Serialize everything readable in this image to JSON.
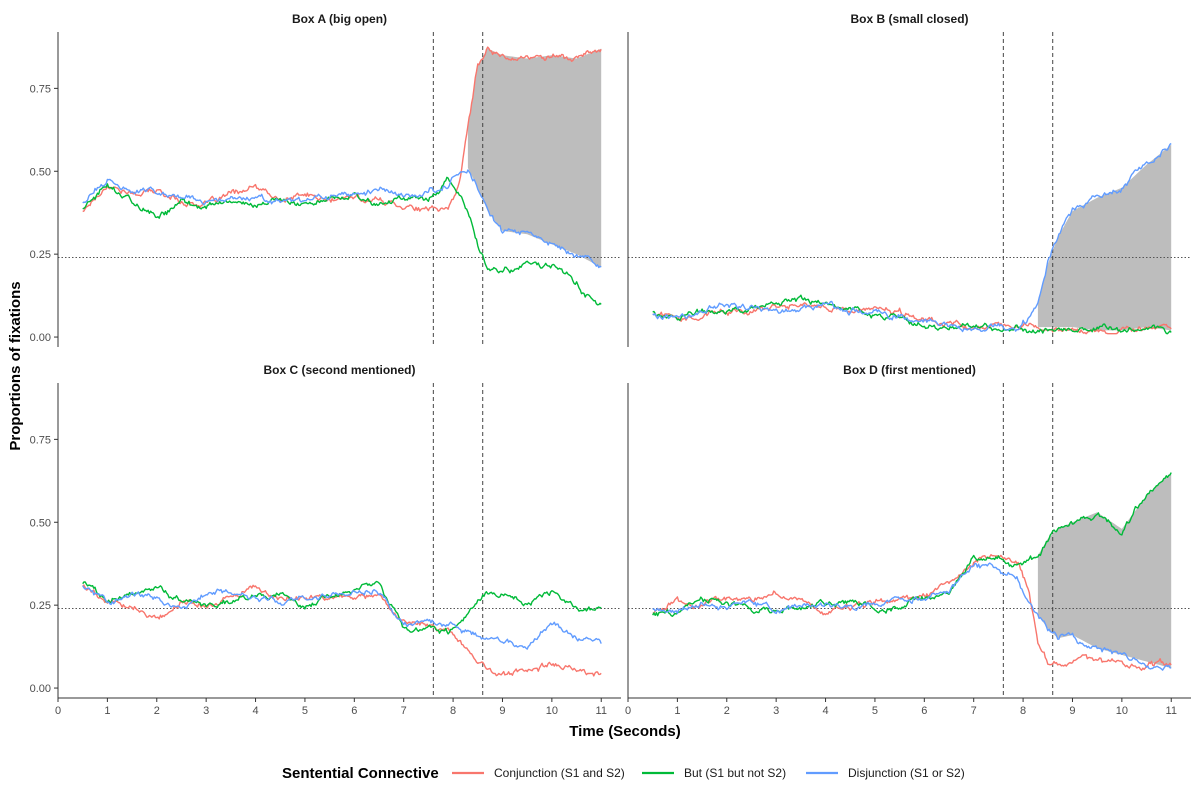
{
  "chart_data": {
    "type": "line",
    "xlabel": "Time (Seconds)",
    "ylabel": "Proportions of fixations",
    "xlim": [
      0,
      11.4
    ],
    "ylim": [
      -0.03,
      0.92
    ],
    "x_ticks": [
      "0",
      "1",
      "2",
      "3",
      "4",
      "5",
      "6",
      "7",
      "8",
      "9",
      "10",
      "11"
    ],
    "y_ticks": [
      "0.00",
      "0.25",
      "0.50",
      "0.75"
    ],
    "reference_line_y": 0.24,
    "vertical_markers_x": [
      7.6,
      8.6
    ],
    "grid": false,
    "legend": {
      "title": "Sentential Connective",
      "position": "bottom",
      "entries": [
        {
          "label": "Conjunction (S1 and S2)",
          "color": "#F8766D"
        },
        {
          "label": "But (S1 but not S2)",
          "color": "#00BA38"
        },
        {
          "label": "Disjunction (S1 or S2)",
          "color": "#619CFF"
        }
      ]
    },
    "shading": {
      "color": "#bdbdbd"
    },
    "panels": [
      {
        "title": "Box A (big open)",
        "shade": {
          "x_start": 8.3,
          "between": [
            "Conjunction (S1 and S2)",
            "Disjunction (S1 or S2)"
          ]
        },
        "x": [
          0.5,
          1,
          1.5,
          2,
          2.5,
          3,
          3.5,
          4,
          4.5,
          5,
          5.5,
          6,
          6.5,
          7,
          7.5,
          7.9,
          8.1,
          8.3,
          8.5,
          8.7,
          9,
          9.5,
          10,
          10.5,
          11
        ],
        "series": [
          {
            "name": "Conjunction (S1 and S2)",
            "values": [
              0.38,
              0.46,
              0.43,
              0.44,
              0.41,
              0.4,
              0.43,
              0.45,
              0.41,
              0.43,
              0.41,
              0.42,
              0.41,
              0.4,
              0.38,
              0.39,
              0.45,
              0.63,
              0.82,
              0.87,
              0.85,
              0.84,
              0.85,
              0.84,
              0.87
            ]
          },
          {
            "name": "But (S1 but not S2)",
            "values": [
              0.39,
              0.46,
              0.41,
              0.36,
              0.41,
              0.39,
              0.41,
              0.4,
              0.41,
              0.4,
              0.43,
              0.43,
              0.4,
              0.41,
              0.42,
              0.47,
              0.44,
              0.37,
              0.27,
              0.21,
              0.2,
              0.22,
              0.22,
              0.16,
              0.09
            ]
          },
          {
            "name": "Disjunction (S1 or S2)",
            "values": [
              0.41,
              0.47,
              0.44,
              0.44,
              0.43,
              0.4,
              0.42,
              0.42,
              0.4,
              0.41,
              0.42,
              0.43,
              0.45,
              0.42,
              0.44,
              0.46,
              0.5,
              0.51,
              0.45,
              0.38,
              0.32,
              0.31,
              0.28,
              0.25,
              0.21
            ]
          }
        ]
      },
      {
        "title": "Box B (small closed)",
        "shade": {
          "x_start": 8.3,
          "between": [
            "Conjunction (S1 and S2)",
            "Disjunction (S1 or S2)"
          ]
        },
        "x": [
          0.5,
          1,
          1.5,
          2,
          2.5,
          3,
          3.5,
          4,
          4.5,
          5,
          5.5,
          6,
          6.5,
          7,
          7.5,
          7.9,
          8.1,
          8.3,
          8.5,
          8.7,
          9,
          9.5,
          10,
          10.5,
          11
        ],
        "series": [
          {
            "name": "Conjunction (S1 and S2)",
            "values": [
              0.07,
              0.06,
              0.07,
              0.08,
              0.08,
              0.09,
              0.1,
              0.09,
              0.08,
              0.08,
              0.07,
              0.05,
              0.04,
              0.03,
              0.03,
              0.04,
              0.04,
              0.03,
              0.03,
              0.03,
              0.03,
              0.02,
              0.02,
              0.03,
              0.02
            ]
          },
          {
            "name": "But (S1 but not S2)",
            "values": [
              0.08,
              0.05,
              0.08,
              0.08,
              0.09,
              0.1,
              0.11,
              0.1,
              0.09,
              0.07,
              0.06,
              0.04,
              0.03,
              0.03,
              0.02,
              0.03,
              0.02,
              0.02,
              0.02,
              0.02,
              0.02,
              0.03,
              0.02,
              0.03,
              0.02
            ]
          },
          {
            "name": "Disjunction (S1 or S2)",
            "values": [
              0.07,
              0.06,
              0.08,
              0.1,
              0.09,
              0.08,
              0.09,
              0.1,
              0.08,
              0.07,
              0.06,
              0.05,
              0.03,
              0.02,
              0.03,
              0.02,
              0.05,
              0.1,
              0.22,
              0.3,
              0.38,
              0.42,
              0.45,
              0.52,
              0.58
            ]
          }
        ]
      },
      {
        "title": "Box C (second mentioned)",
        "x": [
          0.5,
          1,
          1.5,
          2,
          2.5,
          3,
          3.5,
          4,
          4.5,
          5,
          5.5,
          6,
          6.5,
          7,
          7.5,
          7.9,
          8.1,
          8.3,
          8.5,
          8.7,
          9,
          9.5,
          10,
          10.5,
          11
        ],
        "series": [
          {
            "name": "Conjunction (S1 and S2)",
            "values": [
              0.31,
              0.26,
              0.25,
              0.21,
              0.26,
              0.25,
              0.27,
              0.3,
              0.27,
              0.27,
              0.28,
              0.27,
              0.28,
              0.2,
              0.19,
              0.17,
              0.15,
              0.12,
              0.07,
              0.05,
              0.04,
              0.05,
              0.07,
              0.06,
              0.04
            ]
          },
          {
            "name": "But (S1 but not S2)",
            "values": [
              0.32,
              0.27,
              0.28,
              0.3,
              0.26,
              0.25,
              0.26,
              0.27,
              0.29,
              0.24,
              0.28,
              0.29,
              0.31,
              0.18,
              0.18,
              0.17,
              0.19,
              0.22,
              0.27,
              0.29,
              0.28,
              0.26,
              0.29,
              0.24,
              0.24
            ]
          },
          {
            "name": "Disjunction (S1 or S2)",
            "values": [
              0.31,
              0.25,
              0.29,
              0.27,
              0.24,
              0.28,
              0.29,
              0.27,
              0.26,
              0.28,
              0.27,
              0.29,
              0.29,
              0.19,
              0.2,
              0.2,
              0.18,
              0.17,
              0.15,
              0.14,
              0.14,
              0.12,
              0.2,
              0.15,
              0.13
            ]
          }
        ]
      },
      {
        "title": "Box D (first mentioned)",
        "shade": {
          "x_start": 8.3,
          "between": [
            "But (S1 but not S2)",
            "Disjunction (S1 or S2)"
          ]
        },
        "x": [
          0.5,
          1,
          1.5,
          2,
          2.5,
          3,
          3.5,
          4,
          4.5,
          5,
          5.5,
          6,
          6.5,
          7,
          7.5,
          7.9,
          8.1,
          8.3,
          8.5,
          8.7,
          9,
          9.5,
          10,
          10.5,
          11
        ],
        "series": [
          {
            "name": "Conjunction (S1 and S2)",
            "values": [
              0.23,
              0.26,
              0.25,
              0.27,
              0.27,
              0.29,
              0.26,
              0.23,
              0.24,
              0.26,
              0.27,
              0.28,
              0.31,
              0.38,
              0.41,
              0.38,
              0.3,
              0.14,
              0.08,
              0.07,
              0.09,
              0.08,
              0.07,
              0.07,
              0.08
            ]
          },
          {
            "name": "But (S1 but not S2)",
            "values": [
              0.22,
              0.23,
              0.27,
              0.26,
              0.23,
              0.24,
              0.24,
              0.25,
              0.26,
              0.24,
              0.25,
              0.27,
              0.28,
              0.39,
              0.4,
              0.36,
              0.38,
              0.4,
              0.45,
              0.48,
              0.5,
              0.53,
              0.48,
              0.58,
              0.65
            ]
          },
          {
            "name": "Disjunction (S1 or S2)",
            "values": [
              0.24,
              0.23,
              0.26,
              0.24,
              0.26,
              0.24,
              0.25,
              0.25,
              0.24,
              0.25,
              0.26,
              0.27,
              0.29,
              0.37,
              0.36,
              0.33,
              0.27,
              0.22,
              0.18,
              0.15,
              0.16,
              0.12,
              0.1,
              0.08,
              0.06
            ]
          }
        ]
      }
    ]
  }
}
